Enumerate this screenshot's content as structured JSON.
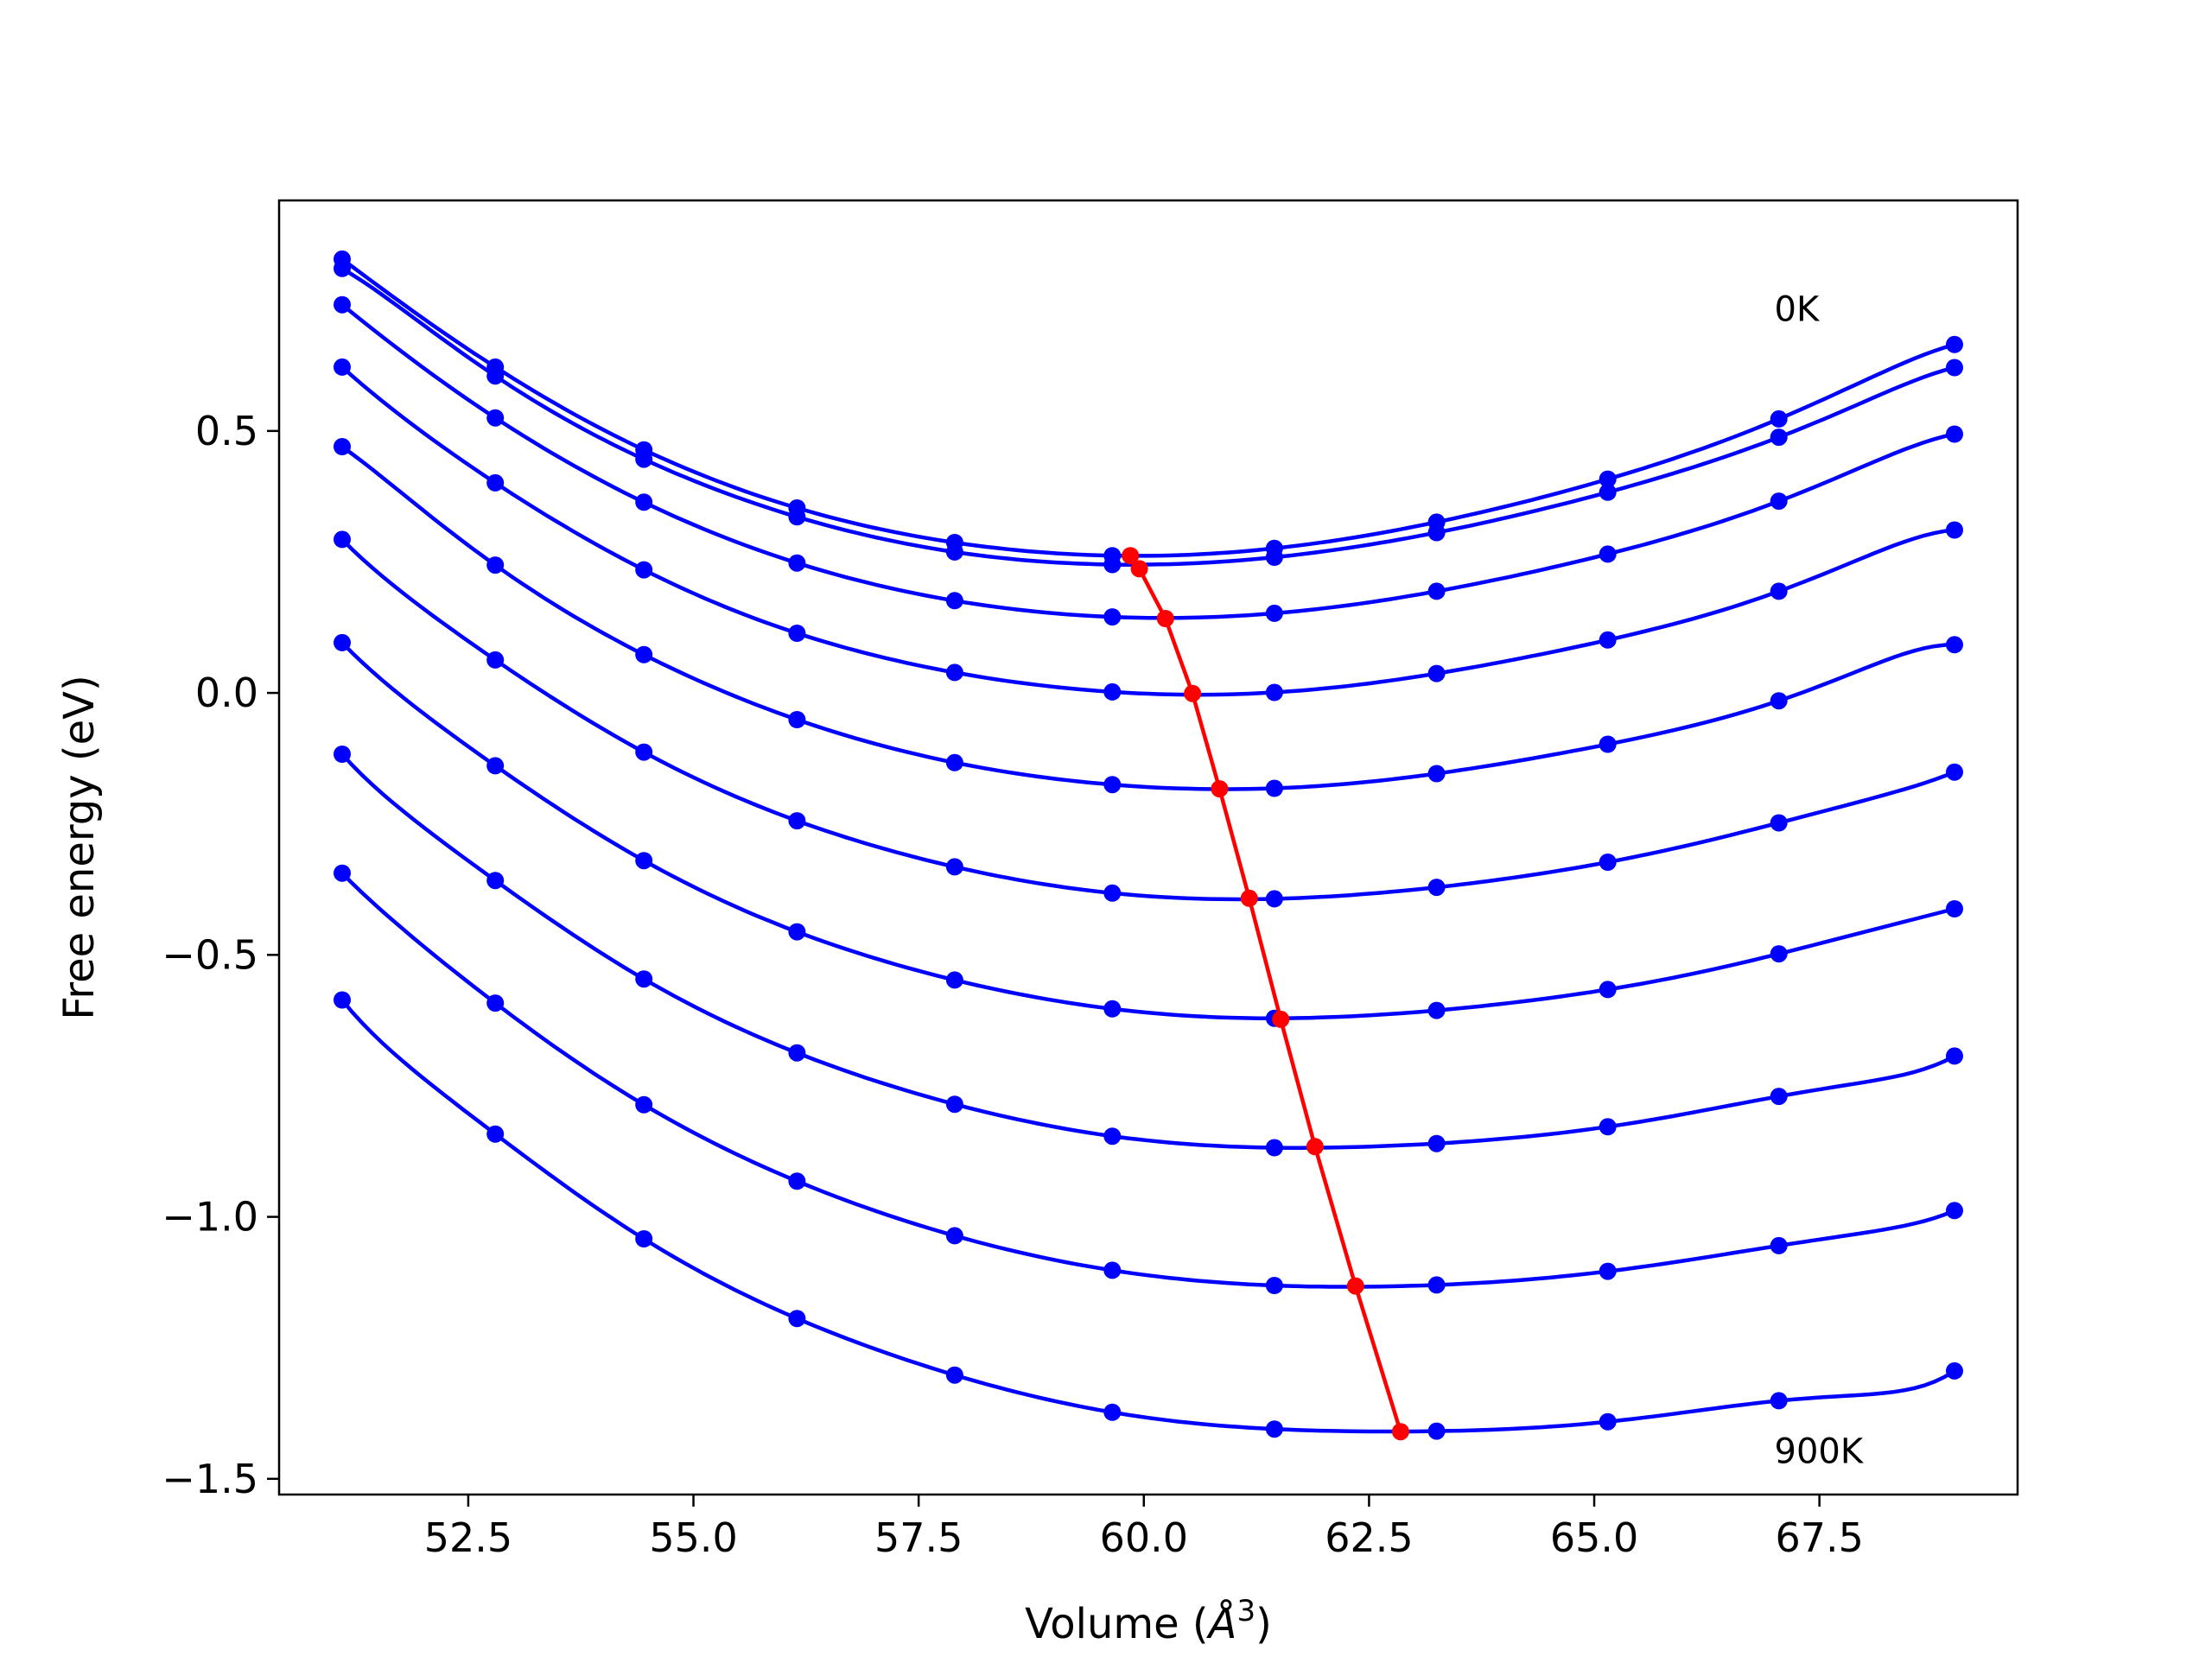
{
  "chart_data": {
    "type": "line",
    "title": "",
    "xlabel_prefix": "Volume (",
    "xlabel_unit": "Å",
    "xlabel_exp": "3",
    "xlabel_suffix": ")",
    "ylabel": "Free energy (eV)",
    "xlim": [
      50.4,
      69.7
    ],
    "ylim": [
      -1.53,
      0.94
    ],
    "xticks": [
      52.5,
      55.0,
      57.5,
      60.0,
      62.5,
      65.0,
      67.5
    ],
    "xtick_labels": [
      "52.5",
      "55.0",
      "57.5",
      "60.0",
      "62.5",
      "65.0",
      "67.5"
    ],
    "yticks": [
      0.5,
      0.0,
      -0.5,
      -1.0,
      -1.5
    ],
    "ytick_labels": [
      "0.5",
      "0.0",
      "−0.5",
      "−1.0",
      "−1.5"
    ],
    "grid": false,
    "annotations": [
      {
        "text": "0K",
        "x": 67.0,
        "y": 0.71
      },
      {
        "text": "900K",
        "x": 67.0,
        "y": -1.47
      }
    ],
    "colors": {
      "series": "#0000ff",
      "minimum": "#ff0000"
    },
    "volumes": [
      51.1,
      52.8,
      54.45,
      56.15,
      57.9,
      59.65,
      61.45,
      63.25,
      65.15,
      67.05,
      69.0
    ],
    "series": [
      {
        "values": [
          0.828,
          0.622,
          0.464,
          0.353,
          0.287,
          0.262,
          0.276,
          0.326,
          0.408,
          0.523,
          0.665
        ]
      },
      {
        "values": [
          0.81,
          0.605,
          0.446,
          0.336,
          0.269,
          0.245,
          0.259,
          0.306,
          0.383,
          0.488,
          0.621
        ]
      },
      {
        "values": [
          0.741,
          0.525,
          0.364,
          0.248,
          0.176,
          0.145,
          0.152,
          0.194,
          0.265,
          0.366,
          0.494
        ]
      },
      {
        "values": [
          0.622,
          0.401,
          0.235,
          0.114,
          0.039,
          0.002,
          0.001,
          0.037,
          0.101,
          0.194,
          0.311
        ]
      },
      {
        "values": [
          0.47,
          0.244,
          0.073,
          -0.051,
          -0.133,
          -0.175,
          -0.182,
          -0.154,
          -0.098,
          -0.015,
          0.092
        ]
      },
      {
        "values": [
          0.293,
          0.063,
          -0.113,
          -0.244,
          -0.332,
          -0.382,
          -0.393,
          -0.371,
          -0.323,
          -0.248,
          -0.151
        ]
      },
      {
        "values": [
          0.096,
          -0.139,
          -0.32,
          -0.456,
          -0.548,
          -0.603,
          -0.621,
          -0.606,
          -0.566,
          -0.498,
          -0.412
        ]
      },
      {
        "values": [
          -0.117,
          -0.358,
          -0.546,
          -0.687,
          -0.785,
          -0.846,
          -0.868,
          -0.86,
          -0.828,
          -0.77,
          -0.693
        ]
      },
      {
        "values": [
          -0.344,
          -0.592,
          -0.786,
          -0.932,
          -1.036,
          -1.102,
          -1.131,
          -1.13,
          -1.104,
          -1.055,
          -0.988
        ]
      },
      {
        "values": [
          -0.586,
          -0.842,
          -1.042,
          -1.194,
          -1.302,
          -1.373,
          -1.405,
          -1.409,
          -1.391,
          -1.351,
          -1.294
        ]
      }
    ],
    "minima": {
      "x": [
        59.85,
        59.95,
        60.24,
        60.54,
        60.84,
        61.17,
        61.52,
        61.9,
        62.35,
        62.85
      ],
      "y": [
        0.262,
        0.237,
        0.142,
        -0.001,
        -0.183,
        -0.392,
        -0.623,
        -0.866,
        -1.132,
        -1.41
      ]
    }
  }
}
